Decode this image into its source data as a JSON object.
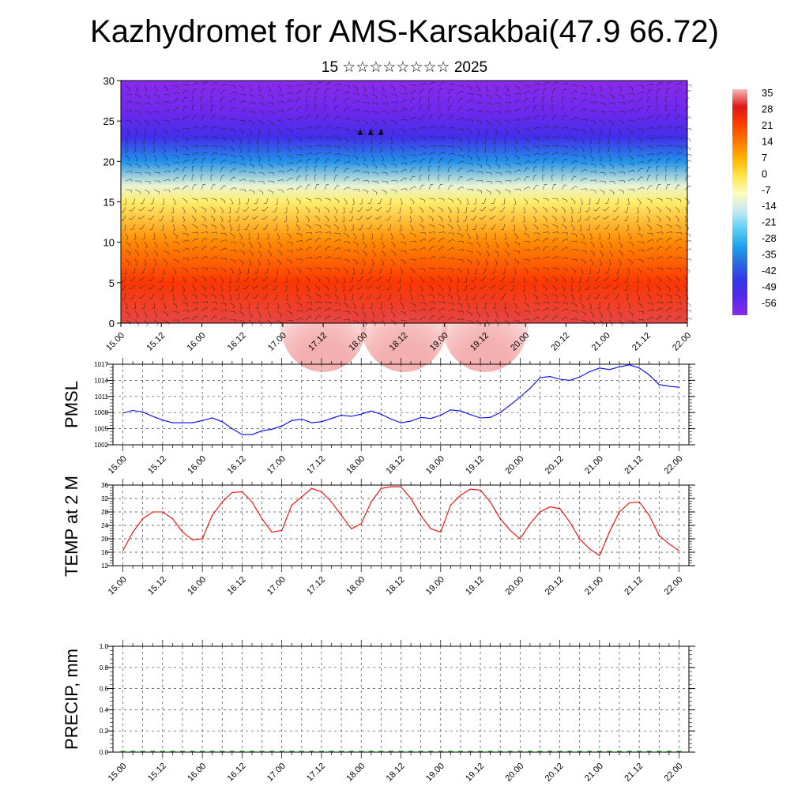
{
  "header": {
    "title": "Kazhydromet for AMS-Karsakbai(47.9 66.72)",
    "subtitle": "15 ☆☆☆☆☆☆☆☆ 2025"
  },
  "x_tick_labels": [
    "15.00",
    "15.12",
    "16.00",
    "16.12",
    "17.00",
    "17.12",
    "18.00",
    "18.12",
    "19.00",
    "19.12",
    "20.00",
    "20.12",
    "21.00",
    "21.12",
    "22.00"
  ],
  "colorbar": {
    "labels": [
      "35",
      "28",
      "21",
      "14",
      "7",
      "0",
      "-7",
      "-14",
      "-21",
      "-28",
      "-35",
      "-42",
      "-49",
      "-56"
    ],
    "stops": [
      "#f4b8b8",
      "#e01818",
      "#ff3c00",
      "#ff7800",
      "#ffb400",
      "#ffe74a",
      "#fffbc0",
      "#c6eaf0",
      "#5fd0f5",
      "#1fa3ee",
      "#2a6be0",
      "#3334e6",
      "#5528ee",
      "#8a2bea"
    ]
  },
  "chart_data": [
    {
      "type": "heatmap",
      "title": "",
      "ylim": [
        0,
        30
      ],
      "yticks": [
        0,
        5,
        10,
        15,
        20,
        25,
        30
      ],
      "x": [
        "15.00",
        "15.12",
        "16.00",
        "16.12",
        "17.00",
        "17.12",
        "18.00",
        "18.12",
        "19.00",
        "19.12",
        "20.00",
        "20.12",
        "21.00",
        "21.12",
        "22.00"
      ],
      "zrange": [
        -56,
        35
      ],
      "z_profile": [
        {
          "y": 0,
          "z": 30
        },
        {
          "y": 5,
          "z": 22
        },
        {
          "y": 10,
          "z": 12
        },
        {
          "y": 15,
          "z": -2
        },
        {
          "y": 17,
          "z": -10
        },
        {
          "y": 20,
          "z": -30
        },
        {
          "y": 23,
          "z": -45
        },
        {
          "y": 26,
          "z": -52
        },
        {
          "y": 30,
          "z": -56
        }
      ],
      "warm_peaks": [
        "17.12",
        "18.12",
        "19.12"
      ],
      "overlay": "wind barbs"
    },
    {
      "type": "line",
      "ylabel": "PMSL",
      "ylim": [
        1002,
        1017
      ],
      "yticks": [
        1002,
        1005,
        1008,
        1011,
        1014,
        1017
      ],
      "x": [
        "15.00",
        "15.03",
        "15.06",
        "15.09",
        "15.12",
        "15.15",
        "15.18",
        "15.21",
        "16.00",
        "16.03",
        "16.06",
        "16.09",
        "16.12",
        "16.15",
        "16.18",
        "16.21",
        "17.00",
        "17.03",
        "17.06",
        "17.09",
        "17.12",
        "17.15",
        "17.18",
        "17.21",
        "18.00",
        "18.03",
        "18.06",
        "18.09",
        "18.12",
        "18.15",
        "18.18",
        "18.21",
        "19.00",
        "19.03",
        "19.06",
        "19.09",
        "19.12",
        "19.15",
        "19.18",
        "19.21",
        "20.00",
        "20.03",
        "20.06",
        "20.09",
        "20.12",
        "20.15",
        "20.18",
        "20.21",
        "21.00",
        "21.03",
        "21.06",
        "21.09",
        "21.12",
        "21.15",
        "21.18",
        "21.21",
        "22.00"
      ],
      "series": [
        {
          "color": "#0000ff",
          "values": [
            1007.9,
            1008.4,
            1008.1,
            1007.3,
            1006.6,
            1006.1,
            1006.1,
            1006.1,
            1006.5,
            1007.0,
            1006.3,
            1005.0,
            1003.9,
            1003.9,
            1004.6,
            1004.9,
            1005.5,
            1006.5,
            1006.8,
            1006.1,
            1006.3,
            1006.9,
            1007.5,
            1007.3,
            1007.7,
            1008.3,
            1007.7,
            1006.8,
            1006.1,
            1006.4,
            1007.1,
            1006.9,
            1007.5,
            1008.5,
            1008.3,
            1007.6,
            1007.0,
            1007.1,
            1008.0,
            1009.4,
            1010.9,
            1012.5,
            1014.5,
            1014.7,
            1014.2,
            1014.0,
            1014.6,
            1015.6,
            1016.3,
            1016.0,
            1016.5,
            1016.9,
            1016.3,
            1015.0,
            1013.2,
            1012.9,
            1012.7
          ]
        }
      ]
    },
    {
      "type": "line",
      "ylabel": "TEMP at 2 M",
      "ylim": [
        12,
        36
      ],
      "yticks": [
        12,
        16,
        20,
        24,
        28,
        32,
        36
      ],
      "x": [
        "15.00",
        "15.03",
        "15.06",
        "15.09",
        "15.12",
        "15.15",
        "15.18",
        "15.21",
        "16.00",
        "16.03",
        "16.06",
        "16.09",
        "16.12",
        "16.15",
        "16.18",
        "16.21",
        "17.00",
        "17.03",
        "17.06",
        "17.09",
        "17.12",
        "17.15",
        "17.18",
        "17.21",
        "18.00",
        "18.03",
        "18.06",
        "18.09",
        "18.12",
        "18.15",
        "18.18",
        "18.21",
        "19.00",
        "19.03",
        "19.06",
        "19.09",
        "19.12",
        "19.15",
        "19.18",
        "19.21",
        "20.00",
        "20.03",
        "20.06",
        "20.09",
        "20.12",
        "20.15",
        "20.18",
        "20.21",
        "21.00",
        "21.03",
        "21.06",
        "21.09",
        "21.12",
        "21.15",
        "21.18",
        "21.21",
        "22.00"
      ],
      "series": [
        {
          "color": "#ff0000",
          "values": [
            16.5,
            22.0,
            26.0,
            28.0,
            28.0,
            26.0,
            22.0,
            19.7,
            20.0,
            27.0,
            31.0,
            33.8,
            34.0,
            31.0,
            26.0,
            22.0,
            22.5,
            30.0,
            32.5,
            35.0,
            34.0,
            31.0,
            27.0,
            23.0,
            24.5,
            31.0,
            35.0,
            35.5,
            35.5,
            32.0,
            27.0,
            23.0,
            22.0,
            30.0,
            33.0,
            34.8,
            34.5,
            31.0,
            26.0,
            22.5,
            20.0,
            24.5,
            28.0,
            29.5,
            29.0,
            25.0,
            20.0,
            17.0,
            15.0,
            22.0,
            28.0,
            30.7,
            31.0,
            27.0,
            21.0,
            18.5,
            16.5
          ]
        }
      ]
    },
    {
      "type": "bar",
      "ylabel": "PRECIP, mm",
      "ylim": [
        0.0,
        1.0
      ],
      "yticks": [
        "0.0",
        "0.2",
        "0.4",
        "0.6",
        "0.8",
        "1.0"
      ],
      "x": [
        "15.00",
        "15.03",
        "15.06",
        "15.09",
        "15.12",
        "15.15",
        "15.18",
        "15.21",
        "16.00",
        "16.03",
        "16.06",
        "16.09",
        "16.12",
        "16.15",
        "16.18",
        "16.21",
        "17.00",
        "17.03",
        "17.06",
        "17.09",
        "17.12",
        "17.15",
        "17.18",
        "17.21",
        "18.00",
        "18.03",
        "18.06",
        "18.09",
        "18.12",
        "18.15",
        "18.18",
        "18.21",
        "19.00",
        "19.03",
        "19.06",
        "19.09",
        "19.12",
        "19.15",
        "19.18",
        "19.21",
        "20.00",
        "20.03",
        "20.06",
        "20.09",
        "20.12",
        "20.15",
        "20.18",
        "20.21",
        "21.00",
        "21.03",
        "21.06",
        "21.09",
        "21.12",
        "21.15",
        "21.18",
        "21.21",
        "22.00"
      ],
      "series": [
        {
          "color": "#006400",
          "values": [
            0,
            0,
            0,
            0,
            0,
            0,
            0,
            0,
            0,
            0,
            0,
            0,
            0,
            0,
            0,
            0,
            0,
            0,
            0,
            0,
            0,
            0,
            0,
            0,
            0,
            0,
            0,
            0,
            0,
            0,
            0,
            0,
            0,
            0,
            0,
            0,
            0,
            0,
            0,
            0,
            0,
            0,
            0,
            0,
            0,
            0,
            0,
            0,
            0,
            0,
            0,
            0,
            0,
            0,
            0,
            0,
            0
          ]
        }
      ]
    }
  ]
}
